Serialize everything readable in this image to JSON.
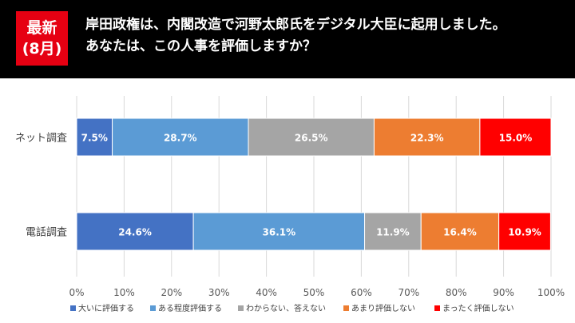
{
  "header": {
    "badge_line1": "最新",
    "badge_line2": "(8月)",
    "question_line1": "岸田政権は、内閣改造で河野太郎氏をデジタル大臣に起用しました。",
    "question_line2": "あなたは、この人事を評価しますか？"
  },
  "chart_data": {
    "type": "bar",
    "orientation": "horizontal",
    "stacked": true,
    "percent_stacked": true,
    "categories": [
      "ネット調査",
      "電話調査"
    ],
    "series": [
      {
        "name": "大いに評価する",
        "values": [
          7.5,
          24.6
        ],
        "labels": [
          "7.5%",
          "24.6%"
        ],
        "color": "#4472c4"
      },
      {
        "name": "ある程度評価する",
        "values": [
          28.7,
          36.1
        ],
        "labels": [
          "28.7%",
          "36.1%"
        ],
        "color": "#5b9bd5"
      },
      {
        "name": "わからない、答えない",
        "values": [
          26.5,
          11.9
        ],
        "labels": [
          "26.5%",
          "11.9%"
        ],
        "color": "#a5a5a5"
      },
      {
        "name": "あまり評価しない",
        "values": [
          22.3,
          16.4
        ],
        "labels": [
          "22.3%",
          "16.4%"
        ],
        "color": "#ed7d31"
      },
      {
        "name": "まったく評価しない",
        "values": [
          15.0,
          10.9
        ],
        "labels": [
          "15.0%",
          "10.9%"
        ],
        "color": "#ff0000"
      }
    ],
    "xlim": [
      0,
      100
    ],
    "xticks": [
      "0%",
      "10%",
      "20%",
      "30%",
      "40%",
      "50%",
      "60%",
      "70%",
      "80%",
      "90%",
      "100%"
    ],
    "grid": true,
    "legend": "bottom"
  }
}
